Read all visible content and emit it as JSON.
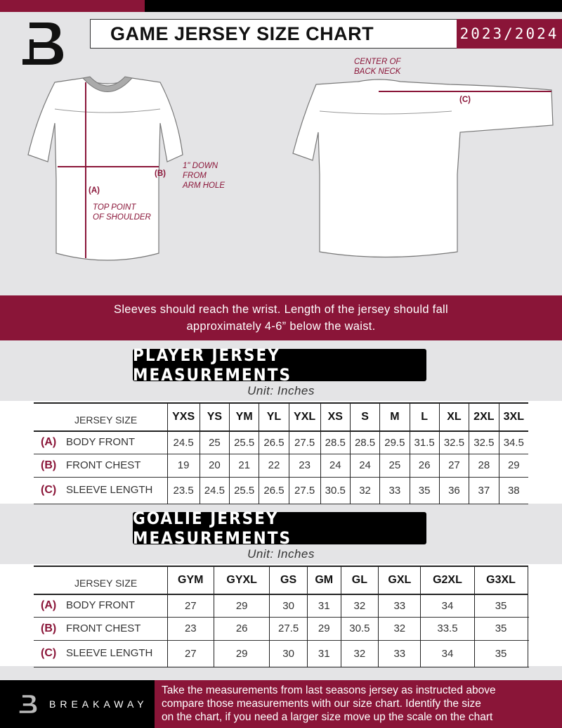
{
  "header": {
    "title": "GAME JERSEY SIZE CHART",
    "season": "2023/2024",
    "logo": "B"
  },
  "colors": {
    "accent": "#8a1538",
    "dark": "#000000",
    "background": "#e4e4e6"
  },
  "diagram": {
    "front": {
      "a_label": "(A)",
      "a_text": [
        "TOP POINT",
        "OF SHOULDER"
      ],
      "b_label": "(B)",
      "b_text": [
        "1\" DOWN",
        "FROM",
        "ARM HOLE"
      ]
    },
    "back": {
      "c_label": "(C)",
      "c_text": [
        "CENTER OF",
        "BACK NECK"
      ]
    }
  },
  "note": [
    "Sleeves should reach the wrist. Length of the jersey should fall",
    "approximately 4-6” below the waist."
  ],
  "player": {
    "title": "PLAYER JERSEY MEASUREMENTS",
    "unit": "Unit: Inches",
    "size_label": "JERSEY SIZE",
    "sizes": [
      "YXS",
      "YS",
      "YM",
      "YL",
      "YXL",
      "XS",
      "S",
      "M",
      "L",
      "XL",
      "2XL",
      "3XL"
    ],
    "rows": [
      {
        "letter": "(A)",
        "label": "BODY FRONT",
        "values": [
          "24.5",
          "25",
          "25.5",
          "26.5",
          "27.5",
          "28.5",
          "28.5",
          "29.5",
          "31.5",
          "32.5",
          "32.5",
          "34.5"
        ]
      },
      {
        "letter": "(B)",
        "label": "FRONT CHEST",
        "values": [
          "19",
          "20",
          "21",
          "22",
          "23",
          "24",
          "24",
          "25",
          "26",
          "27",
          "28",
          "29"
        ]
      },
      {
        "letter": "(C)",
        "label": "SLEEVE LENGTH",
        "values": [
          "23.5",
          "24.5",
          "25.5",
          "26.5",
          "27.5",
          "30.5",
          "32",
          "33",
          "35",
          "36",
          "37",
          "38"
        ]
      }
    ]
  },
  "goalie": {
    "title": "GOALIE JERSEY MEASUREMENTS",
    "unit": "Unit: Inches",
    "size_label": "JERSEY SIZE",
    "sizes": [
      "GYM",
      "GYXL",
      "GS",
      "GM",
      "GL",
      "GXL",
      "G2XL",
      "G3XL",
      ""
    ],
    "rows": [
      {
        "letter": "(A)",
        "label": "BODY FRONT",
        "values": [
          "27",
          "29",
          "30",
          "31",
          "32",
          "33",
          "34",
          "35",
          ""
        ]
      },
      {
        "letter": "(B)",
        "label": "FRONT CHEST",
        "values": [
          "23",
          "26",
          "27.5",
          "29",
          "30.5",
          "32",
          "33.5",
          "35",
          ""
        ]
      },
      {
        "letter": "(C)",
        "label": "SLEEVE LENGTH",
        "values": [
          "27",
          "29",
          "30",
          "31",
          "32",
          "33",
          "34",
          "35",
          ""
        ]
      }
    ]
  },
  "footer": {
    "brand": "BREAKAWAY",
    "text": [
      "Take the measurements from last seasons jersey as instructed above",
      "compare those measurements  with our size chart. Identify the size",
      "on the chart, if you need a larger size move up the scale on the chart"
    ]
  }
}
